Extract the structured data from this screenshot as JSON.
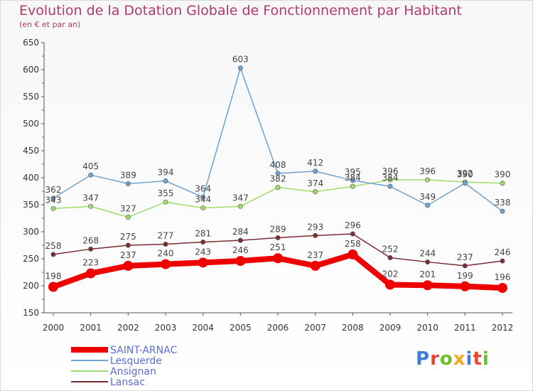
{
  "header": {
    "title": "Evolution de la Dotation Globale de Fonctionnement par Habitant",
    "subtitle": "(en € et par an)"
  },
  "logo": {
    "text": "Proxiti",
    "colors": [
      "#3d7fd6",
      "#e8472f",
      "#6bbf2f",
      "#f2a81d",
      "#3d7fd6",
      "#e8472f",
      "#6bbf2f"
    ]
  },
  "chart_data": {
    "type": "line",
    "title": "Evolution de la Dotation Globale de Fonctionnement par Habitant",
    "subtitle": "(en € et par an)",
    "xlabel": "",
    "ylabel": "",
    "x": [
      "2000",
      "2001",
      "2002",
      "2003",
      "2004",
      "2005",
      "2006",
      "2007",
      "2008",
      "2009",
      "2010",
      "2011",
      "2012"
    ],
    "ylim": [
      150,
      650
    ],
    "yticks": [
      150,
      200,
      250,
      300,
      350,
      400,
      450,
      500,
      550,
      600,
      650
    ],
    "grid": false,
    "legend_position": "bottom-left",
    "series": [
      {
        "name": "SAINT-ARNAC",
        "color": "#ee0000",
        "values": [
          198,
          223,
          237,
          240,
          243,
          246,
          251,
          237,
          258,
          202,
          201,
          199,
          196
        ],
        "labels": [
          "198",
          "223",
          "237",
          "240",
          "243",
          "246",
          "251",
          "237",
          "258",
          "202",
          "201",
          "199",
          "196"
        ]
      },
      {
        "name": "Lesquerde",
        "color": "#6fa2d0",
        "values": [
          362,
          405,
          389,
          394,
          364,
          603,
          408,
          412,
          395,
          384,
          349,
          390,
          338
        ],
        "labels": [
          "362",
          "405",
          "389",
          "394",
          "364",
          "603",
          "408",
          "412",
          "395",
          "384",
          "349",
          "390",
          "338"
        ]
      },
      {
        "name": "Ansignan",
        "color": "#9fdc6a",
        "values": [
          343,
          347,
          327,
          355,
          344,
          347,
          382,
          374,
          384,
          396,
          396,
          392,
          390
        ],
        "labels": [
          "343",
          "347",
          "327",
          "355",
          "344",
          "347",
          "382",
          "374",
          "384",
          "396",
          "396",
          "392",
          "390"
        ]
      },
      {
        "name": "Lansac",
        "color": "#7a2d34",
        "values": [
          258,
          268,
          275,
          277,
          281,
          284,
          289,
          293,
          296,
          252,
          244,
          237,
          246
        ],
        "labels": [
          "258",
          "268",
          "275",
          "277",
          "281",
          "284",
          "289",
          "293",
          "296",
          "252",
          "244",
          "237",
          "246"
        ]
      }
    ]
  }
}
